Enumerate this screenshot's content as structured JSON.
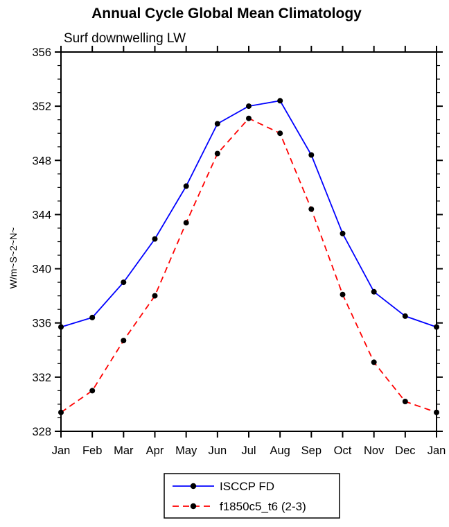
{
  "title": "Annual Cycle Global Mean Climatology",
  "subtitle": "Surf downwelling LW",
  "y_axis_label": "W/m~S~2~N~",
  "chart_data": {
    "type": "line",
    "title": "Annual Cycle Global Mean Climatology",
    "subtitle": "Surf downwelling LW",
    "xlabel": "",
    "ylabel": "W/m~S~2~N~",
    "categories": [
      "Jan",
      "Feb",
      "Mar",
      "Apr",
      "May",
      "Jun",
      "Jul",
      "Aug",
      "Sep",
      "Oct",
      "Nov",
      "Dec",
      "Jan"
    ],
    "series": [
      {
        "name": "ISCCP FD",
        "color": "#0000ff",
        "line_style": "solid",
        "marker": "filled-circle",
        "marker_color": "#000000",
        "values": [
          335.7,
          336.4,
          339.0,
          342.2,
          346.1,
          350.7,
          352.0,
          352.4,
          348.4,
          342.6,
          338.3,
          336.5,
          335.7
        ]
      },
      {
        "name": "f1850c5_t6 (2-3)",
        "color": "#ff0000",
        "line_style": "dashed",
        "marker": "filled-circle",
        "marker_color": "#000000",
        "values": [
          329.4,
          331.0,
          334.7,
          338.0,
          343.4,
          348.5,
          351.1,
          350.0,
          344.4,
          338.1,
          333.1,
          330.2,
          329.4
        ]
      }
    ],
    "ylim": [
      328,
      356
    ],
    "ytick_major": [
      328,
      332,
      336,
      340,
      344,
      348,
      352,
      356
    ],
    "ytick_minor_step": 1,
    "grid": false,
    "frame": "box-with-outward-ticks",
    "legend_position": "bottom-center",
    "axis_color": "#000000"
  }
}
